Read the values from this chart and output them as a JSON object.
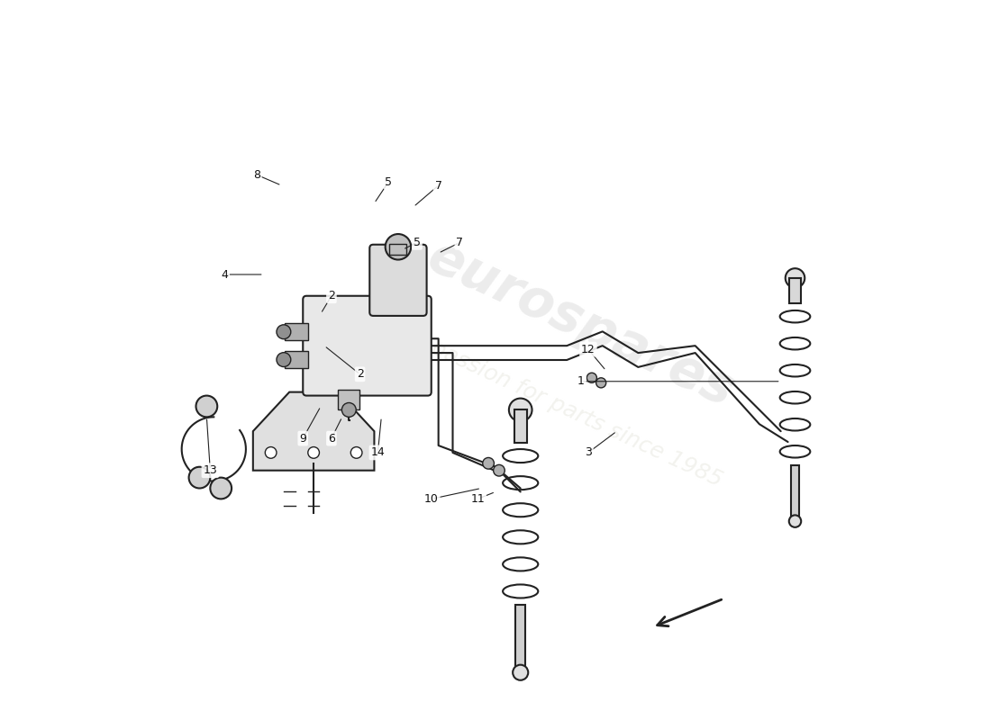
{
  "title": "",
  "bg_color": "#ffffff",
  "watermark_text": "eurospares",
  "watermark_subtext": "a passion for parts since 1985",
  "line_color": "#222222",
  "part_numbers": {
    "1": [
      0.62,
      0.47,
      "1"
    ],
    "2_a": [
      0.31,
      0.53,
      "2"
    ],
    "2_b": [
      0.27,
      0.61,
      "2"
    ],
    "3": [
      0.62,
      0.38,
      "3"
    ],
    "4": [
      0.13,
      0.63,
      "4"
    ],
    "5_a": [
      0.38,
      0.67,
      "5"
    ],
    "5_b": [
      0.36,
      0.75,
      "5"
    ],
    "6": [
      0.28,
      0.39,
      "6"
    ],
    "7_a": [
      0.44,
      0.67,
      "7"
    ],
    "7_b": [
      0.41,
      0.74,
      "7"
    ],
    "8": [
      0.17,
      0.76,
      "8"
    ],
    "9": [
      0.24,
      0.4,
      "9"
    ],
    "10": [
      0.42,
      0.32,
      "10"
    ],
    "11": [
      0.47,
      0.32,
      "11"
    ],
    "12": [
      0.62,
      0.52,
      "12"
    ],
    "13": [
      0.11,
      0.35,
      "13"
    ],
    "14": [
      0.33,
      0.38,
      "14"
    ]
  }
}
